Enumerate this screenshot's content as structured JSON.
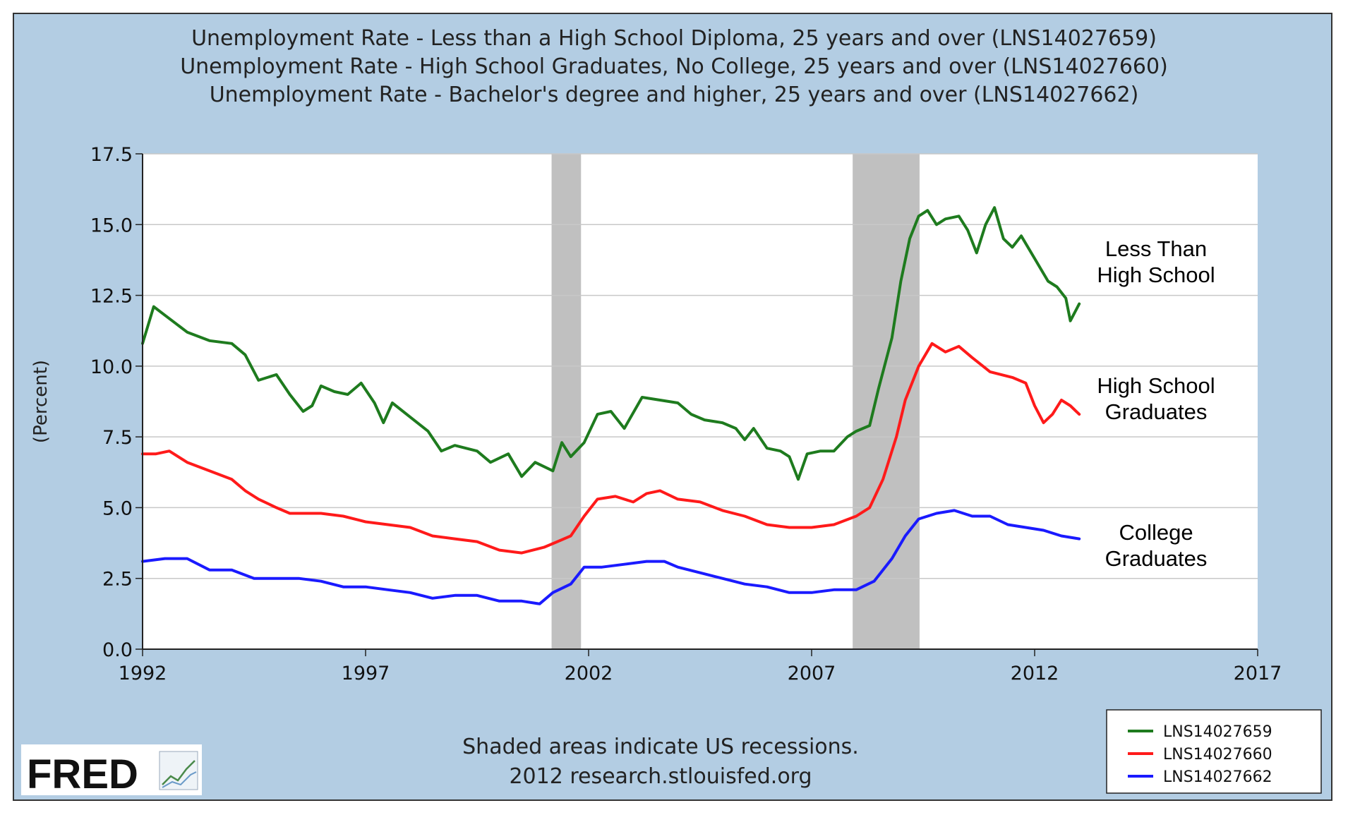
{
  "chart_data": {
    "type": "line",
    "title": [
      "Unemployment Rate - Less than a High School Diploma, 25 years and over (LNS14027659)",
      "Unemployment Rate - High School Graduates, No College, 25 years and over (LNS14027660)",
      "Unemployment Rate - Bachelor's degree and higher, 25 years and over (LNS14027662)"
    ],
    "ylabel": "(Percent)",
    "xlim": [
      1992,
      2017
    ],
    "ylim": [
      0,
      17.5
    ],
    "xticks": [
      "1992",
      "1997",
      "2002",
      "2007",
      "2012",
      "2017"
    ],
    "yticks": [
      "0.0",
      "2.5",
      "5.0",
      "7.5",
      "10.0",
      "12.5",
      "15.0",
      "17.5"
    ],
    "grid": "horizontal",
    "recessions": [
      [
        2001.17,
        2001.83
      ],
      [
        2007.92,
        2009.42
      ]
    ],
    "series": [
      {
        "name": "LNS14027659",
        "color": "#1e7b1e",
        "annotation": [
          "Less Than",
          "High School"
        ],
        "points": [
          [
            1992.0,
            10.8
          ],
          [
            1992.25,
            12.1
          ],
          [
            1992.5,
            11.8
          ],
          [
            1992.75,
            11.5
          ],
          [
            1993.0,
            11.2
          ],
          [
            1993.5,
            10.9
          ],
          [
            1994.0,
            10.8
          ],
          [
            1994.3,
            10.4
          ],
          [
            1994.6,
            9.5
          ],
          [
            1995.0,
            9.7
          ],
          [
            1995.3,
            9.0
          ],
          [
            1995.6,
            8.4
          ],
          [
            1995.8,
            8.6
          ],
          [
            1996.0,
            9.3
          ],
          [
            1996.3,
            9.1
          ],
          [
            1996.6,
            9.0
          ],
          [
            1996.9,
            9.4
          ],
          [
            1997.2,
            8.7
          ],
          [
            1997.4,
            8.0
          ],
          [
            1997.6,
            8.7
          ],
          [
            1998.0,
            8.2
          ],
          [
            1998.4,
            7.7
          ],
          [
            1998.7,
            7.0
          ],
          [
            1999.0,
            7.2
          ],
          [
            1999.5,
            7.0
          ],
          [
            1999.8,
            6.6
          ],
          [
            2000.2,
            6.9
          ],
          [
            2000.5,
            6.1
          ],
          [
            2000.8,
            6.6
          ],
          [
            2001.2,
            6.3
          ],
          [
            2001.4,
            7.3
          ],
          [
            2001.6,
            6.8
          ],
          [
            2001.9,
            7.3
          ],
          [
            2002.2,
            8.3
          ],
          [
            2002.5,
            8.4
          ],
          [
            2002.8,
            7.8
          ],
          [
            2003.2,
            8.9
          ],
          [
            2003.6,
            8.8
          ],
          [
            2004.0,
            8.7
          ],
          [
            2004.3,
            8.3
          ],
          [
            2004.6,
            8.1
          ],
          [
            2005.0,
            8.0
          ],
          [
            2005.3,
            7.8
          ],
          [
            2005.5,
            7.4
          ],
          [
            2005.7,
            7.8
          ],
          [
            2006.0,
            7.1
          ],
          [
            2006.3,
            7.0
          ],
          [
            2006.5,
            6.8
          ],
          [
            2006.7,
            6.0
          ],
          [
            2006.9,
            6.9
          ],
          [
            2007.2,
            7.0
          ],
          [
            2007.5,
            7.0
          ],
          [
            2007.8,
            7.5
          ],
          [
            2008.0,
            7.7
          ],
          [
            2008.3,
            7.9
          ],
          [
            2008.5,
            9.2
          ],
          [
            2008.8,
            11.0
          ],
          [
            2009.0,
            13.0
          ],
          [
            2009.2,
            14.5
          ],
          [
            2009.4,
            15.3
          ],
          [
            2009.6,
            15.5
          ],
          [
            2009.8,
            15.0
          ],
          [
            2010.0,
            15.2
          ],
          [
            2010.3,
            15.3
          ],
          [
            2010.5,
            14.8
          ],
          [
            2010.7,
            14.0
          ],
          [
            2010.9,
            15.0
          ],
          [
            2011.1,
            15.6
          ],
          [
            2011.3,
            14.5
          ],
          [
            2011.5,
            14.2
          ],
          [
            2011.7,
            14.6
          ],
          [
            2012.0,
            13.8
          ],
          [
            2012.3,
            13.0
          ],
          [
            2012.5,
            12.8
          ],
          [
            2012.7,
            12.4
          ],
          [
            2012.8,
            11.6
          ],
          [
            2013.0,
            12.2
          ]
        ]
      },
      {
        "name": "LNS14027660",
        "color": "#ff1a1a",
        "annotation": [
          "High School",
          "Graduates"
        ],
        "points": [
          [
            1992.0,
            6.9
          ],
          [
            1992.3,
            6.9
          ],
          [
            1992.6,
            7.0
          ],
          [
            1993.0,
            6.6
          ],
          [
            1993.5,
            6.3
          ],
          [
            1994.0,
            6.0
          ],
          [
            1994.3,
            5.6
          ],
          [
            1994.6,
            5.3
          ],
          [
            1995.0,
            5.0
          ],
          [
            1995.3,
            4.8
          ],
          [
            1995.6,
            4.8
          ],
          [
            1996.0,
            4.8
          ],
          [
            1996.5,
            4.7
          ],
          [
            1997.0,
            4.5
          ],
          [
            1997.5,
            4.4
          ],
          [
            1998.0,
            4.3
          ],
          [
            1998.5,
            4.0
          ],
          [
            1999.0,
            3.9
          ],
          [
            1999.5,
            3.8
          ],
          [
            2000.0,
            3.5
          ],
          [
            2000.5,
            3.4
          ],
          [
            2001.0,
            3.6
          ],
          [
            2001.3,
            3.8
          ],
          [
            2001.6,
            4.0
          ],
          [
            2001.9,
            4.7
          ],
          [
            2002.2,
            5.3
          ],
          [
            2002.6,
            5.4
          ],
          [
            2003.0,
            5.2
          ],
          [
            2003.3,
            5.5
          ],
          [
            2003.6,
            5.6
          ],
          [
            2004.0,
            5.3
          ],
          [
            2004.5,
            5.2
          ],
          [
            2005.0,
            4.9
          ],
          [
            2005.5,
            4.7
          ],
          [
            2006.0,
            4.4
          ],
          [
            2006.5,
            4.3
          ],
          [
            2007.0,
            4.3
          ],
          [
            2007.5,
            4.4
          ],
          [
            2008.0,
            4.7
          ],
          [
            2008.3,
            5.0
          ],
          [
            2008.6,
            6.0
          ],
          [
            2008.9,
            7.5
          ],
          [
            2009.1,
            8.8
          ],
          [
            2009.4,
            10.0
          ],
          [
            2009.7,
            10.8
          ],
          [
            2010.0,
            10.5
          ],
          [
            2010.3,
            10.7
          ],
          [
            2010.6,
            10.3
          ],
          [
            2011.0,
            9.8
          ],
          [
            2011.5,
            9.6
          ],
          [
            2011.8,
            9.4
          ],
          [
            2012.0,
            8.6
          ],
          [
            2012.2,
            8.0
          ],
          [
            2012.4,
            8.3
          ],
          [
            2012.6,
            8.8
          ],
          [
            2012.8,
            8.6
          ],
          [
            2013.0,
            8.3
          ]
        ]
      },
      {
        "name": "LNS14027662",
        "color": "#1a1aff",
        "annotation": [
          "College",
          "Graduates"
        ],
        "points": [
          [
            1992.0,
            3.1
          ],
          [
            1992.5,
            3.2
          ],
          [
            1993.0,
            3.2
          ],
          [
            1993.5,
            2.8
          ],
          [
            1994.0,
            2.8
          ],
          [
            1994.5,
            2.5
          ],
          [
            1995.0,
            2.5
          ],
          [
            1995.5,
            2.5
          ],
          [
            1996.0,
            2.4
          ],
          [
            1996.5,
            2.2
          ],
          [
            1997.0,
            2.2
          ],
          [
            1997.5,
            2.1
          ],
          [
            1998.0,
            2.0
          ],
          [
            1998.5,
            1.8
          ],
          [
            1999.0,
            1.9
          ],
          [
            1999.5,
            1.9
          ],
          [
            2000.0,
            1.7
          ],
          [
            2000.5,
            1.7
          ],
          [
            2000.9,
            1.6
          ],
          [
            2001.2,
            2.0
          ],
          [
            2001.6,
            2.3
          ],
          [
            2001.9,
            2.9
          ],
          [
            2002.3,
            2.9
          ],
          [
            2002.8,
            3.0
          ],
          [
            2003.3,
            3.1
          ],
          [
            2003.7,
            3.1
          ],
          [
            2004.0,
            2.9
          ],
          [
            2004.5,
            2.7
          ],
          [
            2005.0,
            2.5
          ],
          [
            2005.5,
            2.3
          ],
          [
            2006.0,
            2.2
          ],
          [
            2006.5,
            2.0
          ],
          [
            2007.0,
            2.0
          ],
          [
            2007.5,
            2.1
          ],
          [
            2008.0,
            2.1
          ],
          [
            2008.4,
            2.4
          ],
          [
            2008.8,
            3.2
          ],
          [
            2009.1,
            4.0
          ],
          [
            2009.4,
            4.6
          ],
          [
            2009.8,
            4.8
          ],
          [
            2010.2,
            4.9
          ],
          [
            2010.6,
            4.7
          ],
          [
            2011.0,
            4.7
          ],
          [
            2011.4,
            4.4
          ],
          [
            2011.8,
            4.3
          ],
          [
            2012.2,
            4.2
          ],
          [
            2012.6,
            4.0
          ],
          [
            2013.0,
            3.9
          ]
        ]
      }
    ],
    "legend_placement": "bottom-right",
    "footnote": [
      "Shaded areas indicate US recessions.",
      "2012 research.stlouisfed.org"
    ],
    "logo": "FRED"
  }
}
